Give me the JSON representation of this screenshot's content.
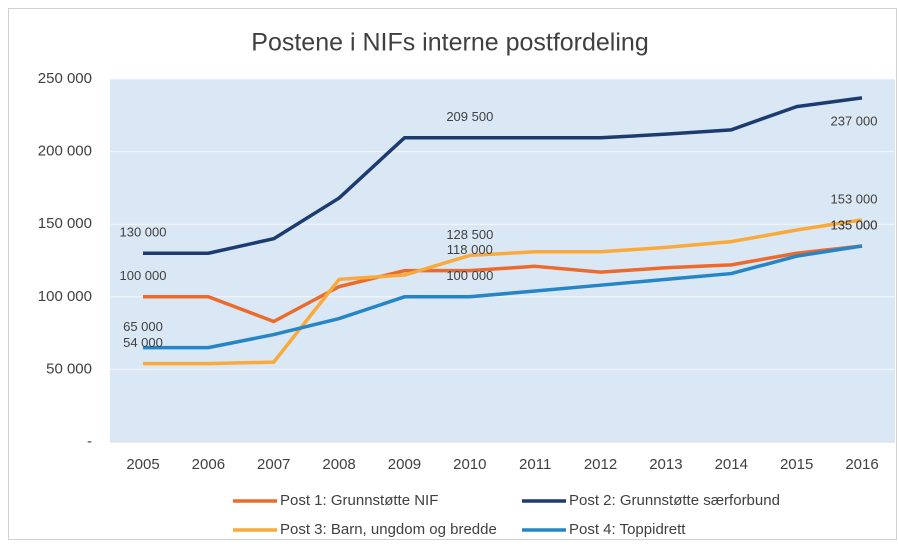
{
  "chart_data": {
    "type": "line",
    "title": "Postene i NIFs interne postfordeling",
    "categories": [
      "2005",
      "2006",
      "2007",
      "2008",
      "2009",
      "2010",
      "2011",
      "2012",
      "2013",
      "2014",
      "2015",
      "2016"
    ],
    "ylim": [
      0,
      250000
    ],
    "yticks": [
      {
        "value": 0,
        "label": "-"
      },
      {
        "value": 50000,
        "label": "50 000"
      },
      {
        "value": 100000,
        "label": "100 000"
      },
      {
        "value": 150000,
        "label": "150 000"
      },
      {
        "value": 200000,
        "label": "200 000"
      },
      {
        "value": 250000,
        "label": "250 000"
      }
    ],
    "grid": true,
    "legend": "bottom",
    "series": [
      {
        "name": "Post 1: Grunnstøtte NIF",
        "color": "#ec6a2c",
        "values": [
          100000,
          100000,
          83000,
          107000,
          118000,
          118000,
          121000,
          117000,
          120000,
          122000,
          130000,
          135000
        ],
        "value_labels": [
          "100 000",
          null,
          null,
          null,
          null,
          "118 000",
          null,
          null,
          null,
          null,
          null,
          "135 000"
        ]
      },
      {
        "name": "Post 2: Grunnstøtte særforbund",
        "color": "#1c3c70",
        "values": [
          130000,
          130000,
          140000,
          168000,
          209500,
          209500,
          209500,
          209500,
          212000,
          215000,
          231000,
          237000
        ],
        "value_labels": [
          "130 000",
          null,
          null,
          null,
          null,
          "209 500",
          null,
          null,
          null,
          null,
          null,
          "237 000"
        ]
      },
      {
        "name": "Post 3: Barn, ungdom og bredde",
        "color": "#f8aa3c",
        "values": [
          54000,
          54000,
          55000,
          112000,
          115000,
          128500,
          131000,
          131000,
          134000,
          138000,
          146000,
          153000
        ],
        "value_labels": [
          "54 000",
          null,
          null,
          null,
          null,
          "128 500",
          null,
          null,
          null,
          null,
          null,
          "153 000"
        ]
      },
      {
        "name": "Post 4: Toppidrett",
        "color": "#2685c6",
        "values": [
          65000,
          65000,
          74000,
          85000,
          100000,
          100000,
          104000,
          108000,
          112000,
          116000,
          128000,
          135000
        ],
        "value_labels": [
          "65 000",
          null,
          null,
          null,
          null,
          "100 000",
          null,
          null,
          null,
          null,
          null,
          "135 000"
        ]
      }
    ]
  }
}
